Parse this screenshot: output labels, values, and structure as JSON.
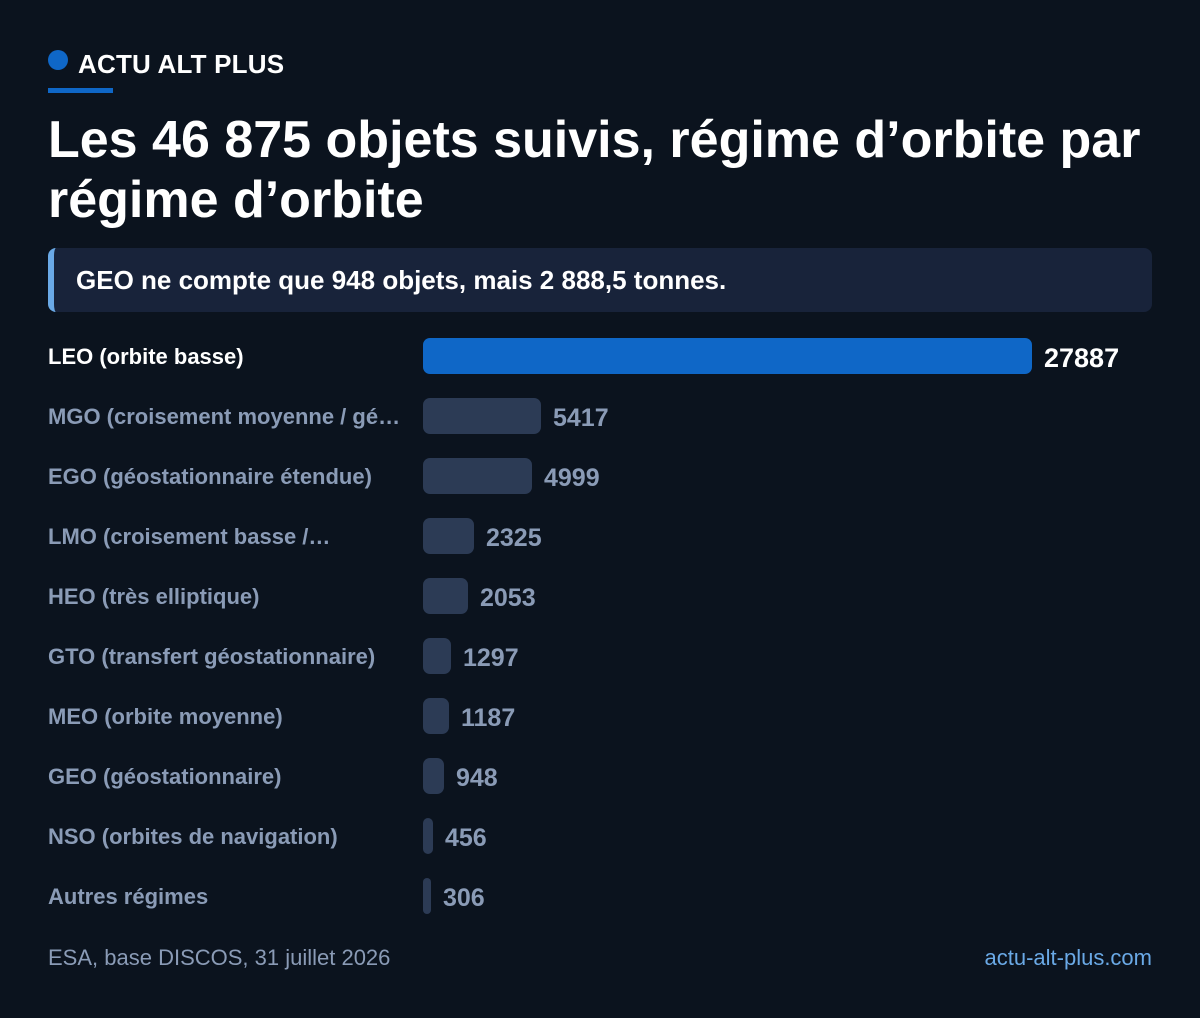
{
  "brand": {
    "name": "ACTU ALT PLUS"
  },
  "title": "Les 46 875 objets suivis, régime d’orbite par régime d’orbite",
  "callout": "GEO ne compte que 948 objets, mais 2 888,5 tonnes.",
  "footer": {
    "source": "ESA, base DISCOS, 31 juillet 2026",
    "site": "actu-alt-plus.com"
  },
  "colors": {
    "background": "#0b131e",
    "accent": "#0f67c7",
    "bar_muted": "#2c3b55",
    "callout_bg": "#18233a",
    "muted_text": "#8a9bb6",
    "link": "#6aa9e6"
  },
  "chart_data": {
    "type": "bar",
    "orientation": "horizontal",
    "categories": [
      "LEO (orbite basse)",
      "MGO (croisement moyenne / gé…",
      "EGO (géostationnaire étendue)",
      "LMO (croisement basse /…",
      "HEO (très elliptique)",
      "GTO (transfert géostationnaire)",
      "MEO (orbite moyenne)",
      "GEO (géostationnaire)",
      "NSO (orbites de navigation)",
      "Autres régimes"
    ],
    "values": [
      27887,
      5417,
      4999,
      2325,
      2053,
      1297,
      1187,
      948,
      456,
      306
    ],
    "highlight_index": 0,
    "xlim": [
      0,
      27887
    ],
    "grid": false
  }
}
